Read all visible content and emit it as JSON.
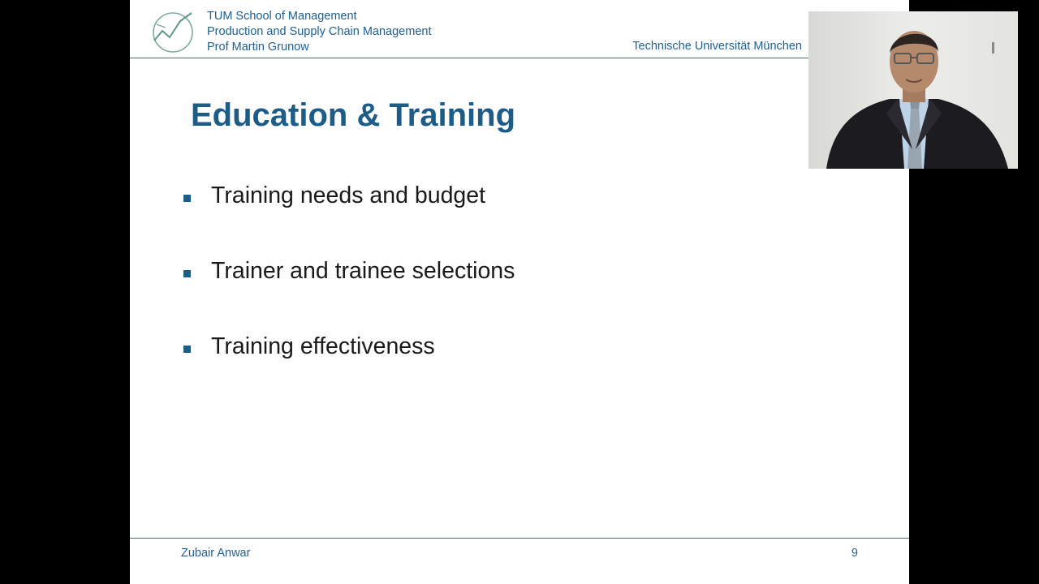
{
  "header": {
    "lines": [
      "TUM School of Management",
      "Production and Supply Chain Management",
      "Prof Martin Grunow"
    ],
    "university": "Technische Universität München"
  },
  "slide": {
    "title": "Education & Training",
    "bullets": [
      "Training needs and budget",
      "Trainer and trainee selections",
      "Training effectiveness"
    ]
  },
  "footer": {
    "author": "Zubair Anwar",
    "page_number": "9"
  },
  "colors": {
    "accent": "#1d5c87",
    "header_text": "#1f5f91",
    "slide_background": "#fdfefd",
    "outer_background": "#000000"
  },
  "icons": {
    "logo": "chart-line-logo-icon",
    "bullet": "square-bullet-icon",
    "presenter": "webcam-presenter-video"
  }
}
